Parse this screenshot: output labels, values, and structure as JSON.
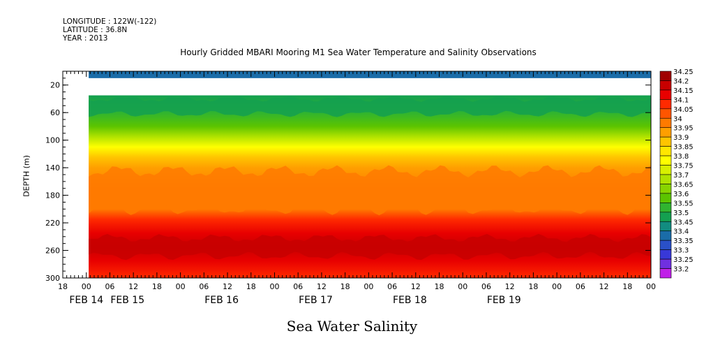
{
  "header": {
    "longitude": "LONGITUDE : 122W(-122)",
    "latitude": "LATITUDE : 36.8N",
    "year": "YEAR : 2013"
  },
  "chart_data": {
    "type": "heatmap",
    "title": "Hourly Gridded MBARI Mooring M1 Sea Water Temperature and Salinity Observations",
    "xlabel": "",
    "ylabel": "DEPTH (m)",
    "bottom_title": "Sea Water Salinity",
    "ylim": [
      300,
      0
    ],
    "yticks": [
      20,
      60,
      100,
      140,
      180,
      220,
      260,
      300
    ],
    "hour_ticks": [
      "18",
      "00",
      "06",
      "12",
      "18",
      "00",
      "06",
      "12",
      "18",
      "00",
      "06",
      "12",
      "18",
      "00",
      "06",
      "12",
      "18",
      "00",
      "06",
      "12",
      "18",
      "00",
      "06",
      "12",
      "18",
      "00"
    ],
    "date_labels": [
      {
        "label": "FEB 14",
        "hour_index": 1
      },
      {
        "label": "FEB 15",
        "hour_index": 2.75
      },
      {
        "label": "FEB 16",
        "hour_index": 6.75
      },
      {
        "label": "FEB 17",
        "hour_index": 10.75
      },
      {
        "label": "FEB 18",
        "hour_index": 14.75
      },
      {
        "label": "FEB 19",
        "hour_index": 18.75
      }
    ],
    "data_start_hour_index": 1.1,
    "surface_layer": {
      "depth_top": 0,
      "depth_bottom": 10,
      "value": 33.42
    },
    "data_gap_depths": [
      10,
      35
    ],
    "depth_profile": [
      {
        "depth": 35,
        "value": 33.52
      },
      {
        "depth": 60,
        "value": 33.55
      },
      {
        "depth": 80,
        "value": 33.63
      },
      {
        "depth": 95,
        "value": 33.72
      },
      {
        "depth": 110,
        "value": 33.82
      },
      {
        "depth": 125,
        "value": 33.9
      },
      {
        "depth": 140,
        "value": 33.98
      },
      {
        "depth": 170,
        "value": 34.0
      },
      {
        "depth": 200,
        "value": 34.04
      },
      {
        "depth": 215,
        "value": 34.1
      },
      {
        "depth": 235,
        "value": 34.17
      },
      {
        "depth": 255,
        "value": 34.23
      },
      {
        "depth": 275,
        "value": 34.16
      },
      {
        "depth": 300,
        "value": 34.12
      }
    ],
    "colorbar": {
      "levels": [
        "34.25",
        "34.2",
        "34.15",
        "34.1",
        "34.05",
        "34",
        "33.95",
        "33.9",
        "33.85",
        "33.8",
        "33.75",
        "33.7",
        "33.65",
        "33.6",
        "33.55",
        "33.5",
        "33.45",
        "33.4",
        "33.35",
        "33.3",
        "33.25",
        "33.2"
      ],
      "colors": [
        "#a00000",
        "#c80000",
        "#e80000",
        "#ff2a00",
        "#ff5500",
        "#ff7a00",
        "#ff9f00",
        "#ffc400",
        "#ffe600",
        "#ffff00",
        "#d8f000",
        "#b0e200",
        "#88d400",
        "#5cc400",
        "#30b430",
        "#14a050",
        "#128c80",
        "#1a6ca8",
        "#2a50c8",
        "#3838d8",
        "#7030e0",
        "#c020e8"
      ]
    }
  }
}
